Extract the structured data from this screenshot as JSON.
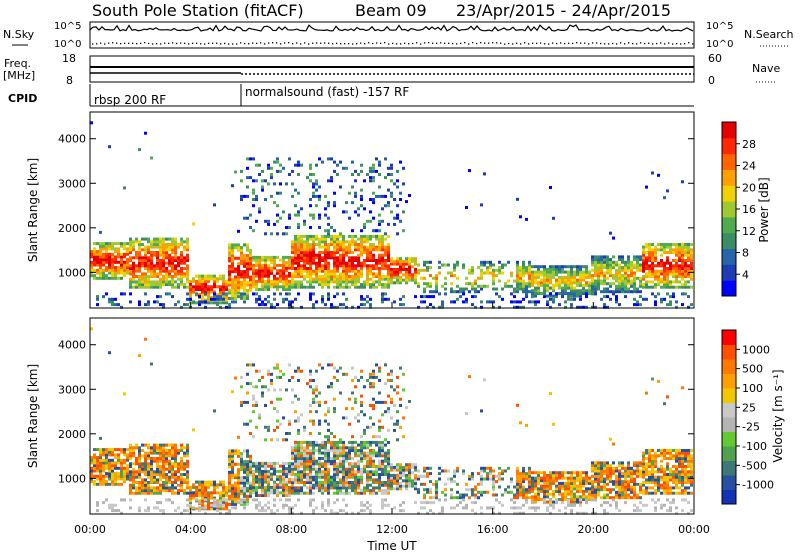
{
  "header": {
    "station": "South Pole Station (fitACF)",
    "beam": "Beam 09",
    "dates": "23/Apr/2015 - 24/Apr/2015"
  },
  "top_panels": {
    "nsky_label": "N.Sky",
    "nsky_ticks": [
      "10^5",
      "10^0"
    ],
    "nsearch_label": "N.Search",
    "nsearch_ticks": [
      "10^5",
      "10^0"
    ],
    "freq_label_1": "Freq.",
    "freq_label_2": "[MHz]",
    "freq_ticks": [
      "18",
      "8"
    ],
    "nave_label": "Nave",
    "nave_ticks": [
      "60",
      "0"
    ],
    "cpid_label": "CPID",
    "cpid_segments": [
      {
        "label": "rbsp 200 RF",
        "start_hour": 0
      },
      {
        "label": "normalsound (fast) -157 RF",
        "start_hour": 6
      }
    ]
  },
  "chart_data": [
    {
      "type": "heatmap",
      "title": "Power",
      "ylabel": "Slant Range [km]",
      "xlabel": "",
      "xlim_hours": [
        0,
        24
      ],
      "ylim": [
        200,
        4600
      ],
      "yticks": [
        1000,
        2000,
        3000,
        4000
      ],
      "colorbar": {
        "label": "Power [dB]",
        "ticks": [
          "28",
          "24",
          "20",
          "16",
          "12",
          "8",
          "4"
        ],
        "colors": [
          "#0000ff",
          "#1e3cb4",
          "#2864aa",
          "#3c8c64",
          "#50aa50",
          "#a0c832",
          "#f0d200",
          "#ffa000",
          "#ff6400",
          "#ff2800",
          "#e60000"
        ]
      }
    },
    {
      "type": "heatmap",
      "title": "Velocity",
      "ylabel": "Slant Range [km]",
      "xlabel": "Time UT",
      "xlim_hours": [
        0,
        24
      ],
      "ylim": [
        200,
        4600
      ],
      "yticks": [
        1000,
        2000,
        3000,
        4000
      ],
      "xticks": [
        "00:00",
        "04:00",
        "08:00",
        "12:00",
        "16:00",
        "20:00",
        "00:00"
      ],
      "colorbar": {
        "label": "Velocity [m s⁻¹]",
        "ticks": [
          "1000",
          "500",
          "100",
          "25",
          "-25",
          "-100",
          "-500",
          "-1000"
        ],
        "colors": [
          "#1432b4",
          "#2850a0",
          "#3c7878",
          "#50a050",
          "#64c832",
          "#b4b4b4",
          "#c8c8c8",
          "#f0c800",
          "#ffa000",
          "#ff7800",
          "#ff5000",
          "#ff0000"
        ]
      }
    }
  ]
}
